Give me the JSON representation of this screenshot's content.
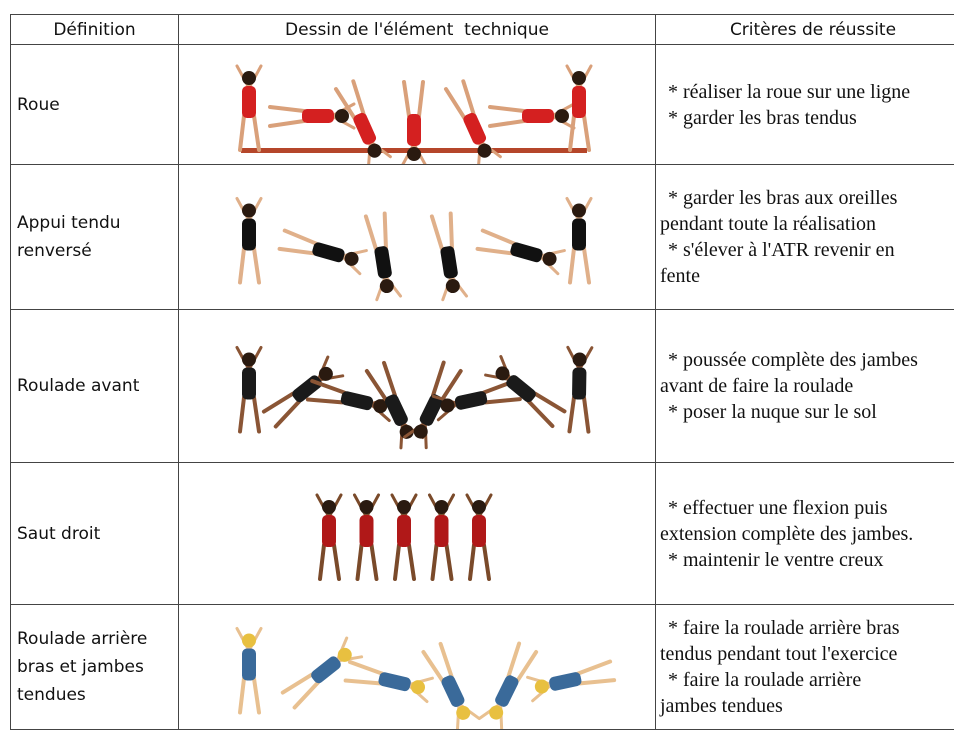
{
  "table": {
    "header": [
      "Définition",
      "Dessin de l'élément  technique",
      "Critères de réussite"
    ],
    "rows": [
      {
        "definition": [
          "Roue"
        ],
        "criteria": [
          "* réaliser la roue sur une ligne",
          "* garder les bras tendus"
        ]
      },
      {
        "definition": [
          "Appui tendu",
          "renversé"
        ],
        "criteria": [
          "* garder les bras aux oreilles",
          "pendant toute la réalisation",
          "* s'élever à l'ATR revenir en",
          "fente"
        ]
      },
      {
        "definition": [
          "Roulade avant"
        ],
        "criteria": [
          "* poussée complète des jambes",
          "avant de faire la roulade",
          "* poser la nuque sur le sol"
        ]
      },
      {
        "definition": [
          "Saut droit"
        ],
        "criteria": [
          "* effectuer une flexion puis",
          "extension complète des jambes.",
          "* maintenir le ventre creux"
        ]
      },
      {
        "definition": [
          "Roulade arrière",
          "bras et jambes",
          "tendues"
        ],
        "criteria": [
          "* faire la roulade arrière bras",
          "tendus pendant tout l'exercice",
          "* faire la roulade arrière",
          "jambes tendues"
        ]
      }
    ]
  }
}
